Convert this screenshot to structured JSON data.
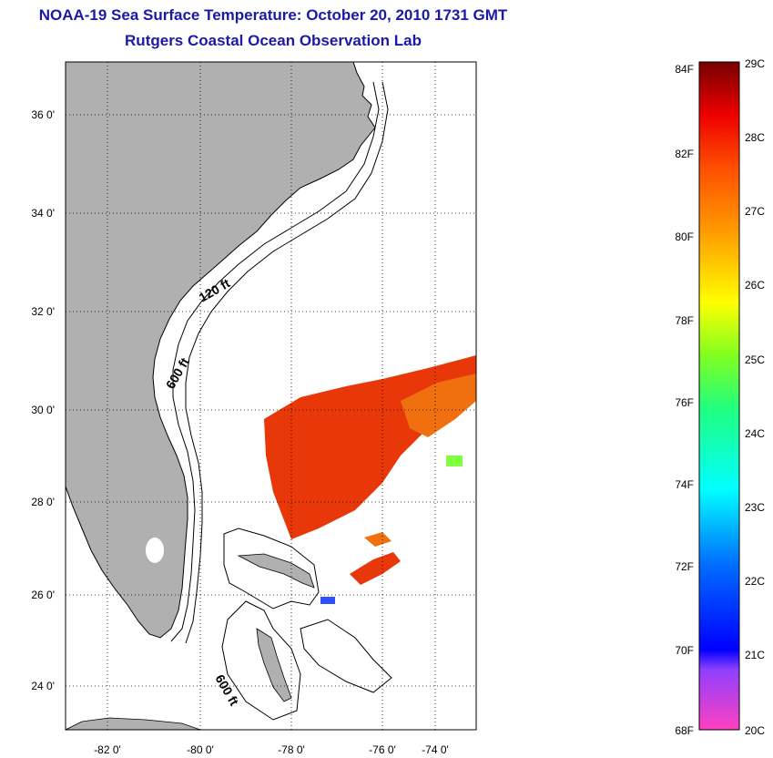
{
  "header": {
    "title": "NOAA-19 Sea Surface Temperature:  October 20, 2010 1731 GMT",
    "subtitle": "Rutgers Coastal Ocean Observation Lab"
  },
  "map": {
    "lat_labels": [
      "36 0'",
      "34 0'",
      "32 0'",
      "30 0'",
      "28 0'",
      "26 0'",
      "24 0'"
    ],
    "lon_labels": [
      "-82 0'",
      "-80 0'",
      "-78 0'",
      "-76 0'",
      "-74 0'"
    ],
    "contour_labels": [
      "120 ft",
      "600 ft",
      "600 ft"
    ],
    "colors": {
      "land": "#b0b0b0",
      "ocean": "#ffffff",
      "sst_warm": "#e8380a",
      "sst_mid": "#f07010"
    }
  },
  "colorbar": {
    "f_labels": [
      "84F",
      "82F",
      "80F",
      "78F",
      "76F",
      "74F",
      "72F",
      "70F",
      "68F"
    ],
    "c_labels": [
      "29C",
      "28C",
      "27C",
      "26C",
      "25C",
      "24C",
      "23C",
      "22C",
      "21C",
      "20C"
    ]
  }
}
